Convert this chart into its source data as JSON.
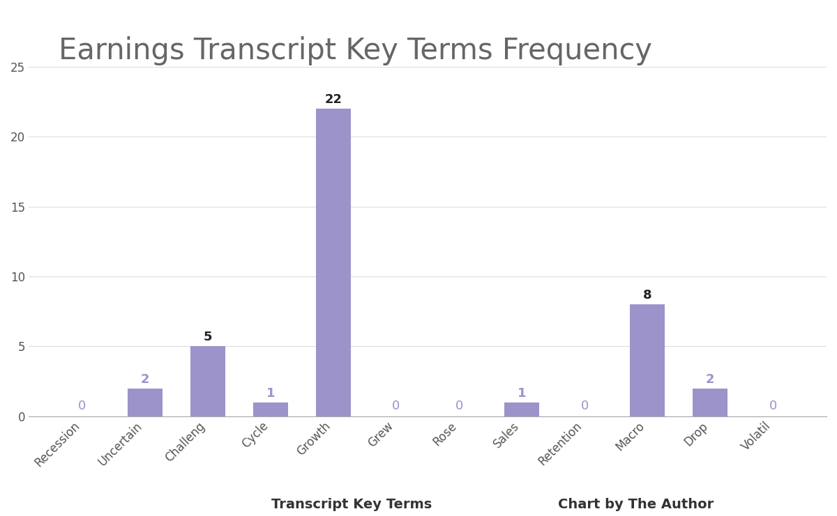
{
  "title": "Earnings Transcript Key Terms Frequency",
  "categories": [
    "Recession",
    "Uncertain",
    "Challeng",
    "Cycle",
    "Growth",
    "Grew",
    "Rose",
    "Sales",
    "Retention",
    "Macro",
    "Drop",
    "Volatil"
  ],
  "values": [
    0,
    2,
    5,
    1,
    22,
    0,
    0,
    1,
    0,
    8,
    2,
    0
  ],
  "bar_color": "#9b93c9",
  "label_color_nonzero": "#222222",
  "label_color_zero": "#9b93c9",
  "label_color_small": "#9b93c9",
  "xlabel": "Transcript Key Terms",
  "xlabel2": "Chart by The Author",
  "ylim": [
    0,
    25
  ],
  "yticks": [
    0,
    5,
    10,
    15,
    20,
    25
  ],
  "title_fontsize": 30,
  "axis_label_fontsize": 14,
  "tick_label_fontsize": 12,
  "value_label_fontsize": 13,
  "background_color": "#ffffff",
  "grid_color": "#dddddd",
  "text_color": "#555555"
}
